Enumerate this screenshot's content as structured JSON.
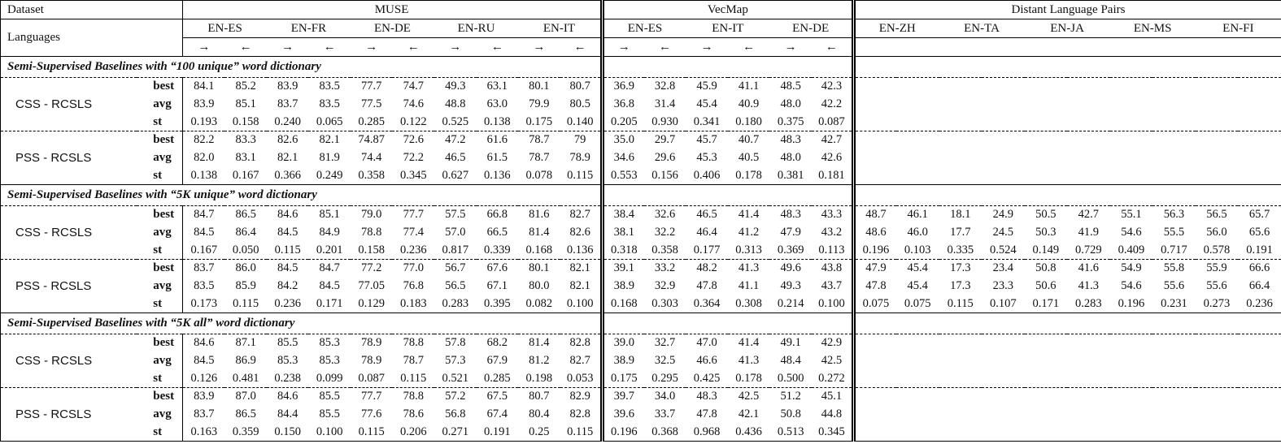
{
  "header": {
    "dataset_label": "Dataset",
    "languages_label": "Languages",
    "arrow_right": "→",
    "arrow_left": "←",
    "groups": [
      {
        "key": "muse",
        "name": "MUSE",
        "pairs": [
          "EN-ES",
          "EN-FR",
          "EN-DE",
          "EN-RU",
          "EN-IT"
        ],
        "show_arrows": true
      },
      {
        "key": "vecmap",
        "name": "VecMap",
        "pairs": [
          "EN-ES",
          "EN-IT",
          "EN-DE"
        ],
        "show_arrows": true
      },
      {
        "key": "distant",
        "name": "Distant Language Pairs",
        "pairs": [
          "EN-ZH",
          "EN-TA",
          "EN-JA",
          "EN-MS",
          "EN-FI"
        ],
        "show_arrows": false
      }
    ]
  },
  "stat_labels": [
    "best",
    "avg",
    "st"
  ],
  "sections": [
    {
      "title": "Semi-Supervised Baselines with “100 unique” word dictionary",
      "methods": [
        {
          "name": "CSS - RCSLS",
          "stats": {
            "best": {
              "muse": [
                "84.1",
                "85.2",
                "83.9",
                "83.5",
                "77.7",
                "74.7",
                "49.3",
                "63.1",
                "80.1",
                "80.7"
              ],
              "vecmap": [
                "36.9",
                "32.8",
                "45.9",
                "41.1",
                "48.5",
                "42.3"
              ],
              "distant": []
            },
            "avg": {
              "muse": [
                "83.9",
                "85.1",
                "83.7",
                "83.5",
                "77.5",
                "74.6",
                "48.8",
                "63.0",
                "79.9",
                "80.5"
              ],
              "vecmap": [
                "36.8",
                "31.4",
                "45.4",
                "40.9",
                "48.0",
                "42.2"
              ],
              "distant": []
            },
            "st": {
              "muse": [
                "0.193",
                "0.158",
                "0.240",
                "0.065",
                "0.285",
                "0.122",
                "0.525",
                "0.138",
                "0.175",
                "0.140"
              ],
              "vecmap": [
                "0.205",
                "0.930",
                "0.341",
                "0.180",
                "0.375",
                "0.087"
              ],
              "distant": []
            }
          }
        },
        {
          "name": "PSS - RCSLS",
          "stats": {
            "best": {
              "muse": [
                "82.2",
                "83.3",
                "82.6",
                "82.1",
                "74.87",
                "72.6",
                "47.2",
                "61.6",
                "78.7",
                "79"
              ],
              "vecmap": [
                "35.0",
                "29.7",
                "45.7",
                "40.7",
                "48.3",
                "42.7"
              ],
              "distant": []
            },
            "avg": {
              "muse": [
                "82.0",
                "83.1",
                "82.1",
                "81.9",
                "74.4",
                "72.2",
                "46.5",
                "61.5",
                "78.7",
                "78.9"
              ],
              "vecmap": [
                "34.6",
                "29.6",
                "45.3",
                "40.5",
                "48.0",
                "42.6"
              ],
              "distant": []
            },
            "st": {
              "muse": [
                "0.138",
                "0.167",
                "0.366",
                "0.249",
                "0.358",
                "0.345",
                "0.627",
                "0.136",
                "0.078",
                "0.115"
              ],
              "vecmap": [
                "0.553",
                "0.156",
                "0.406",
                "0.178",
                "0.381",
                "0.181"
              ],
              "distant": []
            }
          }
        }
      ]
    },
    {
      "title": "Semi-Supervised Baselines with “5K unique” word dictionary",
      "methods": [
        {
          "name": "CSS - RCSLS",
          "stats": {
            "best": {
              "muse": [
                "84.7",
                "86.5",
                "84.6",
                "85.1",
                "79.0",
                "77.7",
                "57.5",
                "66.8",
                "81.6",
                "82.7"
              ],
              "vecmap": [
                "38.4",
                "32.6",
                "46.5",
                "41.4",
                "48.3",
                "43.3"
              ],
              "distant": [
                "48.7",
                "46.1",
                "18.1",
                "24.9",
                "50.5",
                "42.7",
                "55.1",
                "56.3",
                "56.5",
                "65.7"
              ]
            },
            "avg": {
              "muse": [
                "84.5",
                "86.4",
                "84.5",
                "84.9",
                "78.8",
                "77.4",
                "57.0",
                "66.5",
                "81.4",
                "82.6"
              ],
              "vecmap": [
                "38.1",
                "32.2",
                "46.4",
                "41.2",
                "47.9",
                "43.2"
              ],
              "distant": [
                "48.6",
                "46.0",
                "17.7",
                "24.5",
                "50.3",
                "41.9",
                "54.6",
                "55.5",
                "56.0",
                "65.6"
              ]
            },
            "st": {
              "muse": [
                "0.167",
                "0.050",
                "0.115",
                "0.201",
                "0.158",
                "0.236",
                "0.817",
                "0.339",
                "0.168",
                "0.136"
              ],
              "vecmap": [
                "0.318",
                "0.358",
                "0.177",
                "0.313",
                "0.369",
                "0.113"
              ],
              "distant": [
                "0.196",
                "0.103",
                "0.335",
                "0.524",
                "0.149",
                "0.729",
                "0.409",
                "0.717",
                "0.578",
                "0.191"
              ]
            }
          }
        },
        {
          "name": "PSS - RCSLS",
          "stats": {
            "best": {
              "muse": [
                "83.7",
                "86.0",
                "84.5",
                "84.7",
                "77.2",
                "77.0",
                "56.7",
                "67.6",
                "80.1",
                "82.1"
              ],
              "vecmap": [
                "39.1",
                "33.2",
                "48.2",
                "41.3",
                "49.6",
                "43.8"
              ],
              "distant": [
                "47.9",
                "45.4",
                "17.3",
                "23.4",
                "50.8",
                "41.6",
                "54.9",
                "55.8",
                "55.9",
                "66.6"
              ]
            },
            "avg": {
              "muse": [
                "83.5",
                "85.9",
                "84.2",
                "84.5",
                "77.05",
                "76.8",
                "56.5",
                "67.1",
                "80.0",
                "82.1"
              ],
              "vecmap": [
                "38.9",
                "32.9",
                "47.8",
                "41.1",
                "49.3",
                "43.7"
              ],
              "distant": [
                "47.8",
                "45.4",
                "17.3",
                "23.3",
                "50.6",
                "41.3",
                "54.6",
                "55.6",
                "55.6",
                "66.4"
              ]
            },
            "st": {
              "muse": [
                "0.173",
                "0.115",
                "0.236",
                "0.171",
                "0.129",
                "0.183",
                "0.283",
                "0.395",
                "0.082",
                "0.100"
              ],
              "vecmap": [
                "0.168",
                "0.303",
                "0.364",
                "0.308",
                "0.214",
                "0.100"
              ],
              "distant": [
                "0.075",
                "0.075",
                "0.115",
                "0.107",
                "0.171",
                "0.283",
                "0.196",
                "0.231",
                "0.273",
                "0.236"
              ]
            }
          }
        }
      ]
    },
    {
      "title": "Semi-Supervised Baselines with “5K all” word dictionary",
      "methods": [
        {
          "name": "CSS - RCSLS",
          "stats": {
            "best": {
              "muse": [
                "84.6",
                "87.1",
                "85.5",
                "85.3",
                "78.9",
                "78.8",
                "57.8",
                "68.2",
                "81.4",
                "82.8"
              ],
              "vecmap": [
                "39.0",
                "32.7",
                "47.0",
                "41.4",
                "49.1",
                "42.9"
              ],
              "distant": []
            },
            "avg": {
              "muse": [
                "84.5",
                "86.9",
                "85.3",
                "85.3",
                "78.9",
                "78.7",
                "57.3",
                "67.9",
                "81.2",
                "82.7"
              ],
              "vecmap": [
                "38.9",
                "32.5",
                "46.6",
                "41.3",
                "48.4",
                "42.5"
              ],
              "distant": []
            },
            "st": {
              "muse": [
                "0.126",
                "0.481",
                "0.238",
                "0.099",
                "0.087",
                "0.115",
                "0.521",
                "0.285",
                "0.198",
                "0.053"
              ],
              "vecmap": [
                "0.175",
                "0.295",
                "0.425",
                "0.178",
                "0.500",
                "0.272"
              ],
              "distant": []
            }
          }
        },
        {
          "name": "PSS - RCSLS",
          "stats": {
            "best": {
              "muse": [
                "83.9",
                "87.0",
                "84.6",
                "85.5",
                "77.7",
                "78.8",
                "57.2",
                "67.5",
                "80.7",
                "82.9"
              ],
              "vecmap": [
                "39.7",
                "34.0",
                "48.3",
                "42.5",
                "51.2",
                "45.1"
              ],
              "distant": []
            },
            "avg": {
              "muse": [
                "83.7",
                "86.5",
                "84.4",
                "85.5",
                "77.6",
                "78.6",
                "56.8",
                "67.4",
                "80.4",
                "82.8"
              ],
              "vecmap": [
                "39.6",
                "33.7",
                "47.8",
                "42.1",
                "50.8",
                "44.8"
              ],
              "distant": []
            },
            "st": {
              "muse": [
                "0.163",
                "0.359",
                "0.150",
                "0.100",
                "0.115",
                "0.206",
                "0.271",
                "0.191",
                "0.25",
                "0.115"
              ],
              "vecmap": [
                "0.196",
                "0.368",
                "0.968",
                "0.436",
                "0.513",
                "0.345"
              ],
              "distant": []
            }
          }
        }
      ]
    }
  ]
}
